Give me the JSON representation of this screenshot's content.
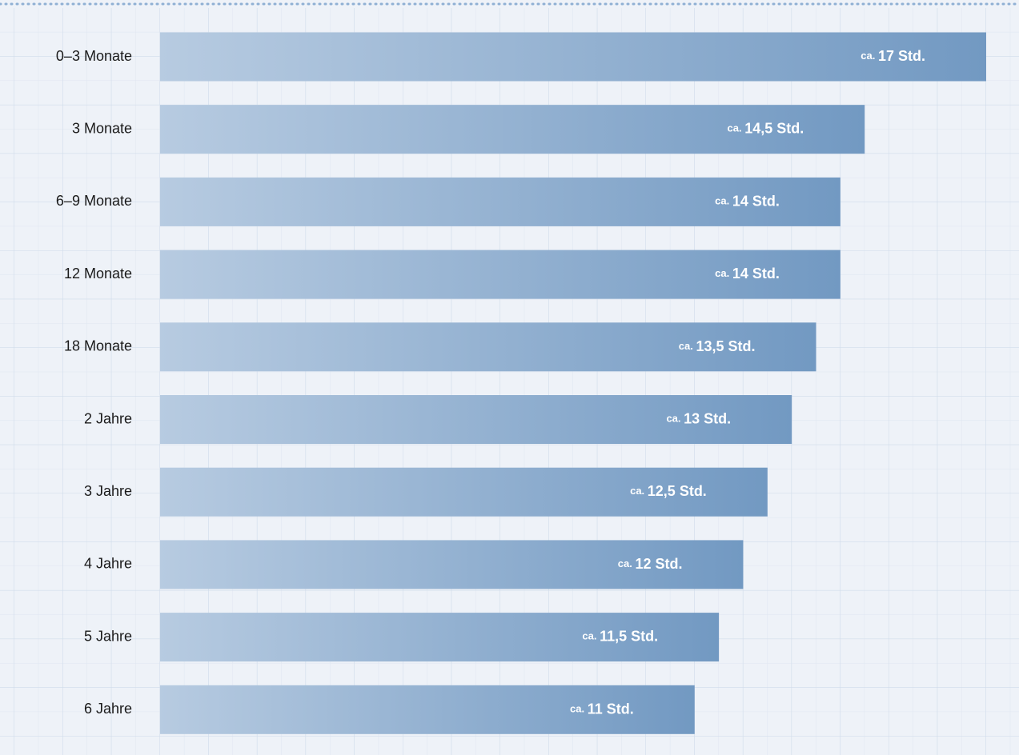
{
  "chart_data": {
    "type": "bar",
    "orientation": "horizontal",
    "categories": [
      "0–3 Monate",
      "3 Monate",
      "6–9 Monate",
      "12 Monate",
      "18 Monate",
      "2 Jahre",
      "3 Jahre",
      "4 Jahre",
      "5 Jahre",
      "6 Jahre"
    ],
    "values": [
      17,
      14.5,
      14,
      14,
      13.5,
      13,
      12.5,
      12,
      11.5,
      11
    ],
    "value_labels": [
      "ca. 17 Std.",
      "ca. 14,5 Std.",
      "ca. 14 Std.",
      "ca. 14 Std.",
      "ca. 13,5 Std.",
      "ca. 13 Std.",
      "ca. 12,5 Std.",
      "ca. 12 Std.",
      "ca. 11,5 Std.",
      "ca. 11 Std."
    ],
    "color": "#7299c2",
    "xlim": [
      0,
      17
    ]
  }
}
